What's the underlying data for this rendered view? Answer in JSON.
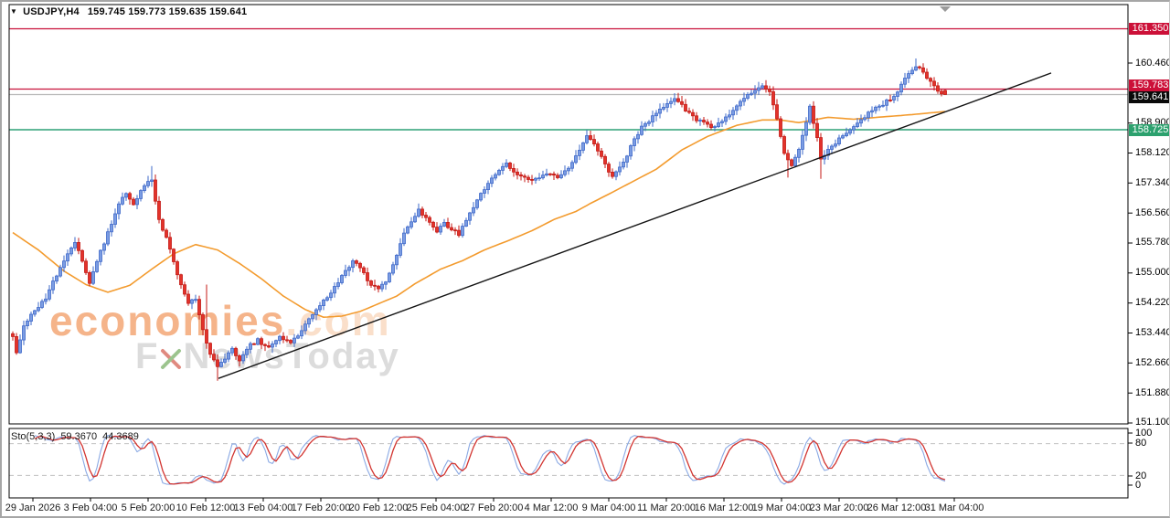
{
  "window": {
    "dropdown_glyph": "▼",
    "title": "USDJPY,H4",
    "quote_line": "159.745 159.773 159.635 159.641"
  },
  "watermark": {
    "brand": "economies",
    "brand_suffix": ".com",
    "tagline_prefix": "F",
    "tagline_rest": "NewsToday"
  },
  "colors": {
    "up_fill": "#7b9ce3",
    "up_border": "#3e68c9",
    "down_fill": "#e3322a",
    "down_border": "#c41a15",
    "ma_line": "#f39b2e",
    "trendline": "#141414",
    "resistance_line": "#c81139",
    "current_price_line": "#b8b8b8",
    "support_line": "#2da077",
    "sto_k": "#8aa9e4",
    "sto_d": "#d23430",
    "frame": "#000000",
    "shift_marker": "#9a9a9a",
    "level_dash": "#c0c0c0"
  },
  "chart_data": {
    "type": "candlestick",
    "symbol": "USDJPY",
    "timeframe": "H4",
    "last_bar_ohlc": {
      "open": 159.745,
      "high": 159.773,
      "low": 159.635,
      "close": 159.641
    },
    "bars": 256,
    "y_axis": {
      "ticks": [
        "160.460",
        "158.900",
        "158.120",
        "157.340",
        "156.560",
        "155.780",
        "155.000",
        "154.220",
        "153.440",
        "152.660",
        "151.880",
        "151.100"
      ],
      "visible_range": [
        151.0,
        161.98
      ]
    },
    "x_axis": {
      "labels": [
        "29 Jan 2026",
        "3 Feb 04:00",
        "5 Feb 20:00",
        "10 Feb 12:00",
        "13 Feb 04:00",
        "17 Feb 20:00",
        "20 Feb 12:00",
        "25 Feb 04:00",
        "27 Feb 20:00",
        "4 Mar 12:00",
        "9 Mar 04:00",
        "11 Mar 20:00",
        "16 Mar 12:00",
        "19 Mar 04:00",
        "23 Mar 20:00",
        "26 Mar 12:00",
        "31 Mar 04:00"
      ],
      "bars_per_label": 16
    },
    "h_lines": [
      {
        "price": 161.35,
        "label": "161.350",
        "role": "resistance",
        "badge": "red"
      },
      {
        "price": 159.783,
        "label": "159.783",
        "role": "resistance",
        "badge": "red"
      },
      {
        "price": 159.641,
        "label": "159.641",
        "role": "current-price",
        "badge": "black"
      },
      {
        "price": 158.725,
        "label": "158.725",
        "role": "support",
        "badge": "green"
      }
    ],
    "trendline": {
      "from_bar": 56.25,
      "from_price": 152.26,
      "to_bar": 284,
      "to_price": 160.2
    },
    "ma_waypoints": [
      [
        0,
        156.05
      ],
      [
        7,
        155.6
      ],
      [
        14,
        155.05
      ],
      [
        20,
        154.7
      ],
      [
        26,
        154.5
      ],
      [
        32,
        154.68
      ],
      [
        38,
        155.1
      ],
      [
        44,
        155.5
      ],
      [
        50,
        155.74
      ],
      [
        56,
        155.6
      ],
      [
        62,
        155.25
      ],
      [
        68,
        154.85
      ],
      [
        74,
        154.4
      ],
      [
        80,
        154.05
      ],
      [
        85,
        153.85
      ],
      [
        90,
        153.88
      ],
      [
        95,
        154.0
      ],
      [
        100,
        154.2
      ],
      [
        105,
        154.4
      ],
      [
        110,
        154.72
      ],
      [
        117,
        155.1
      ],
      [
        123,
        155.32
      ],
      [
        129,
        155.6
      ],
      [
        136,
        155.86
      ],
      [
        142,
        156.1
      ],
      [
        148,
        156.39
      ],
      [
        154,
        156.6
      ],
      [
        158,
        156.81
      ],
      [
        164,
        157.1
      ],
      [
        169,
        157.35
      ],
      [
        176,
        157.7
      ],
      [
        183,
        158.2
      ],
      [
        190,
        158.55
      ],
      [
        198,
        158.84
      ],
      [
        205,
        158.98
      ],
      [
        210,
        158.98
      ],
      [
        215,
        158.91
      ],
      [
        223,
        159.05
      ],
      [
        230,
        159.0
      ],
      [
        238,
        159.06
      ],
      [
        246,
        159.12
      ],
      [
        255,
        159.2
      ]
    ],
    "close_waypoints": [
      [
        0,
        153.35
      ],
      [
        1,
        152.95
      ],
      [
        3,
        153.6
      ],
      [
        5,
        153.9
      ],
      [
        7,
        154.1
      ],
      [
        9,
        154.35
      ],
      [
        11,
        154.8
      ],
      [
        13,
        155.1
      ],
      [
        15,
        155.5
      ],
      [
        17,
        155.8
      ],
      [
        19,
        155.3
      ],
      [
        21,
        154.7
      ],
      [
        23,
        155.3
      ],
      [
        25,
        155.8
      ],
      [
        27,
        156.3
      ],
      [
        29,
        156.8
      ],
      [
        31,
        157.1
      ],
      [
        33,
        156.8
      ],
      [
        35,
        157.1
      ],
      [
        37,
        157.35
      ],
      [
        38,
        157.45
      ],
      [
        39,
        156.9
      ],
      [
        40,
        156.4
      ],
      [
        42,
        155.9
      ],
      [
        44,
        155.3
      ],
      [
        46,
        154.7
      ],
      [
        48,
        154.2
      ],
      [
        50,
        154.35
      ],
      [
        52,
        153.5
      ],
      [
        54,
        152.9
      ],
      [
        56,
        152.55
      ],
      [
        58,
        152.8
      ],
      [
        60,
        153.0
      ],
      [
        62,
        152.75
      ],
      [
        64,
        153.05
      ],
      [
        67,
        153.25
      ],
      [
        70,
        153.05
      ],
      [
        73,
        153.35
      ],
      [
        76,
        153.2
      ],
      [
        79,
        153.5
      ],
      [
        81,
        153.85
      ],
      [
        84,
        154.15
      ],
      [
        87,
        154.5
      ],
      [
        90,
        154.9
      ],
      [
        93,
        155.3
      ],
      [
        95,
        155.15
      ],
      [
        97,
        154.8
      ],
      [
        100,
        154.55
      ],
      [
        102,
        154.8
      ],
      [
        104,
        155.2
      ],
      [
        106,
        155.8
      ],
      [
        108,
        156.2
      ],
      [
        111,
        156.65
      ],
      [
        113,
        156.4
      ],
      [
        116,
        156.1
      ],
      [
        118,
        156.3
      ],
      [
        120,
        156.15
      ],
      [
        122,
        156.0
      ],
      [
        124,
        156.4
      ],
      [
        127,
        156.9
      ],
      [
        130,
        157.35
      ],
      [
        133,
        157.7
      ],
      [
        135,
        157.85
      ],
      [
        137,
        157.6
      ],
      [
        139,
        157.55
      ],
      [
        141,
        157.4
      ],
      [
        144,
        157.5
      ],
      [
        147,
        157.55
      ],
      [
        149,
        157.45
      ],
      [
        152,
        157.75
      ],
      [
        155,
        158.2
      ],
      [
        157,
        158.55
      ],
      [
        159,
        158.35
      ],
      [
        161,
        158.0
      ],
      [
        164,
        157.5
      ],
      [
        167,
        157.85
      ],
      [
        169,
        158.3
      ],
      [
        172,
        158.8
      ],
      [
        175,
        159.05
      ],
      [
        178,
        159.35
      ],
      [
        181,
        159.55
      ],
      [
        184,
        159.25
      ],
      [
        186,
        159.05
      ],
      [
        188,
        158.95
      ],
      [
        191,
        158.8
      ],
      [
        194,
        158.95
      ],
      [
        197,
        159.25
      ],
      [
        200,
        159.55
      ],
      [
        203,
        159.75
      ],
      [
        205,
        159.85
      ],
      [
        207,
        159.7
      ],
      [
        209,
        159.0
      ],
      [
        211,
        158.15
      ],
      [
        213,
        157.75
      ],
      [
        215,
        158.25
      ],
      [
        217,
        158.9
      ],
      [
        218,
        159.3
      ],
      [
        220,
        158.5
      ],
      [
        221,
        157.95
      ],
      [
        223,
        158.2
      ],
      [
        226,
        158.5
      ],
      [
        229,
        158.75
      ],
      [
        232,
        159.0
      ],
      [
        235,
        159.25
      ],
      [
        238,
        159.4
      ],
      [
        241,
        159.6
      ],
      [
        243,
        159.9
      ],
      [
        245,
        160.15
      ],
      [
        247,
        160.4
      ],
      [
        249,
        160.25
      ],
      [
        251,
        159.95
      ],
      [
        253,
        159.75
      ],
      [
        255,
        159.641
      ]
    ],
    "spikes": [
      {
        "bar": 38,
        "high": 157.78
      },
      {
        "bar": 53,
        "high": 154.7
      },
      {
        "bar": 56,
        "low": 152.2
      },
      {
        "bar": 204,
        "high": 159.97
      },
      {
        "bar": 212,
        "low": 157.48
      },
      {
        "bar": 221,
        "low": 157.45
      },
      {
        "bar": 247,
        "high": 160.58
      }
    ],
    "stochastic": {
      "label": "Sto(5,3,3)",
      "k_value": "59.3670",
      "d_value": "44.3689",
      "params": [
        5,
        3,
        3
      ],
      "levels": [
        80,
        20
      ],
      "scale_ticks": [
        "100",
        "80",
        "20",
        "0"
      ],
      "range": [
        0,
        100
      ]
    }
  }
}
